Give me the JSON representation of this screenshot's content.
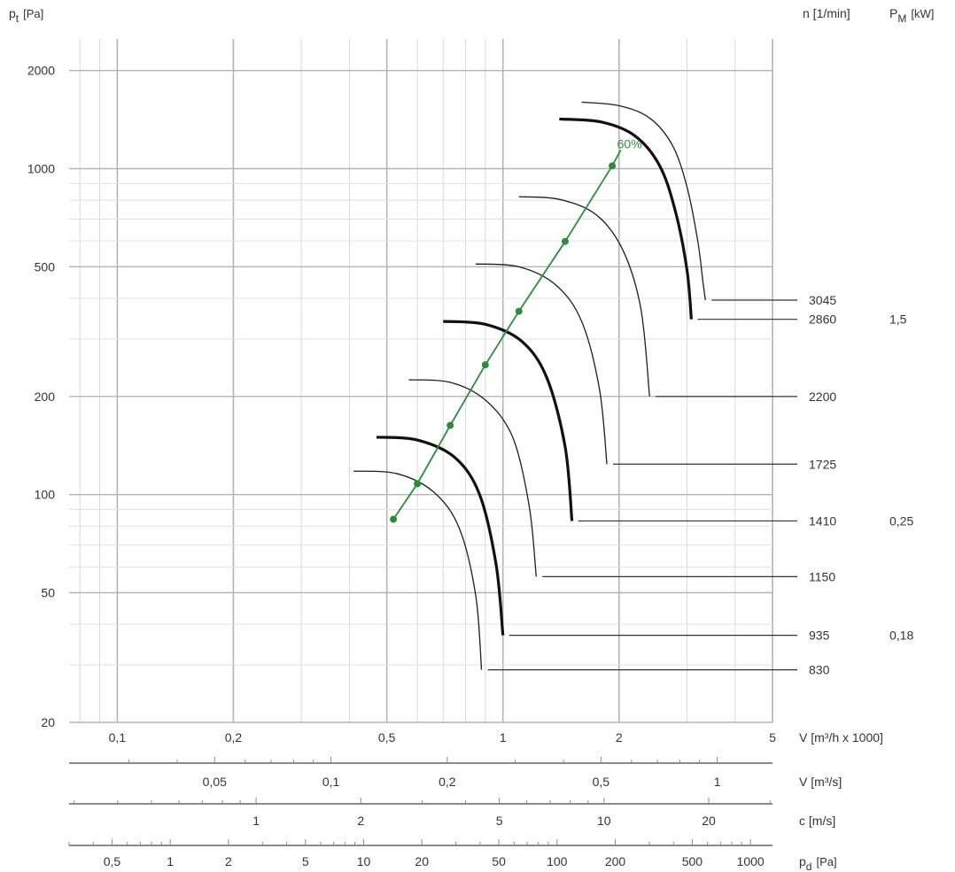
{
  "chart_data": {
    "type": "line",
    "title": "",
    "y_axis": {
      "label_main": "p",
      "label_sub": "t",
      "label_unit": "[Pa]",
      "scale": "log",
      "range": [
        20,
        2500
      ],
      "ticks": [
        "20",
        "50",
        "100",
        "200",
        "500",
        "1000",
        "2000"
      ],
      "tick_values": [
        20,
        50,
        100,
        200,
        500,
        1000,
        2000
      ]
    },
    "x_axis": {
      "label": "V [m³/h x 1000]",
      "scale": "log",
      "range": [
        0.075,
        5
      ],
      "ticks": [
        "0,1",
        "0,2",
        "0,5",
        "1",
        "2",
        "5"
      ],
      "tick_values": [
        0.1,
        0.2,
        0.5,
        1,
        2,
        5
      ]
    },
    "secondary_axes": [
      {
        "label": "V [m³/s]",
        "ticks": [
          "0,05",
          "0,1",
          "0,2",
          "0,5",
          "1"
        ],
        "tick_values": [
          0.05,
          0.1,
          0.2,
          0.5,
          1
        ]
      },
      {
        "label": "c [m/s]",
        "ticks": [
          "1",
          "2",
          "5",
          "10",
          "20"
        ],
        "tick_values": [
          1,
          2,
          5,
          10,
          20
        ]
      },
      {
        "label_main": "p",
        "label_sub": "d",
        "label_unit": "[Pa]",
        "ticks": [
          "0,5",
          "1",
          "2",
          "5",
          "10",
          "20",
          "50",
          "100",
          "200",
          "500",
          "1000"
        ],
        "tick_values": [
          0.5,
          1,
          2,
          5,
          10,
          20,
          50,
          100,
          200,
          500,
          1000
        ]
      }
    ],
    "right_headers": {
      "speed_header": "n [1/min]",
      "power_header_main": "P",
      "power_header_sub": "M",
      "power_header_unit": "[kW]"
    },
    "efficiency_line": {
      "label": "60%",
      "points": [
        {
          "x": 0.52,
          "y": 84
        },
        {
          "x": 0.6,
          "y": 108
        },
        {
          "x": 0.73,
          "y": 163
        },
        {
          "x": 0.9,
          "y": 250
        },
        {
          "x": 1.1,
          "y": 365
        },
        {
          "x": 1.45,
          "y": 598
        },
        {
          "x": 1.92,
          "y": 1020
        },
        {
          "x": 2.02,
          "y": 1140
        }
      ]
    },
    "series": [
      {
        "speed": "3045",
        "power": "",
        "bold": false,
        "points": [
          [
            1.6,
            1600
          ],
          [
            2.0,
            1560
          ],
          [
            2.4,
            1430
          ],
          [
            2.75,
            1180
          ],
          [
            3.0,
            880
          ],
          [
            3.2,
            600
          ],
          [
            3.3,
            450
          ],
          [
            3.35,
            395
          ]
        ]
      },
      {
        "speed": "2860",
        "power": "1,5",
        "bold": true,
        "points": [
          [
            1.4,
            1420
          ],
          [
            1.8,
            1390
          ],
          [
            2.2,
            1260
          ],
          [
            2.55,
            1020
          ],
          [
            2.8,
            740
          ],
          [
            3.0,
            490
          ],
          [
            3.08,
            345
          ]
        ]
      },
      {
        "speed": "2200",
        "power": "",
        "bold": false,
        "points": [
          [
            1.1,
            820
          ],
          [
            1.4,
            805
          ],
          [
            1.75,
            720
          ],
          [
            2.05,
            560
          ],
          [
            2.28,
            370
          ],
          [
            2.4,
            200
          ]
        ]
      },
      {
        "speed": "1725",
        "power": "",
        "bold": false,
        "points": [
          [
            0.85,
            510
          ],
          [
            1.1,
            500
          ],
          [
            1.37,
            440
          ],
          [
            1.6,
            340
          ],
          [
            1.78,
            210
          ],
          [
            1.86,
            124
          ]
        ]
      },
      {
        "speed": "1410",
        "power": "0,25",
        "bold": true,
        "points": [
          [
            0.7,
            340
          ],
          [
            0.9,
            333
          ],
          [
            1.12,
            295
          ],
          [
            1.3,
            228
          ],
          [
            1.45,
            140
          ],
          [
            1.51,
            83
          ]
        ]
      },
      {
        "speed": "1150",
        "power": "",
        "bold": false,
        "points": [
          [
            0.57,
            225
          ],
          [
            0.73,
            221
          ],
          [
            0.9,
            195
          ],
          [
            1.06,
            150
          ],
          [
            1.17,
            92
          ],
          [
            1.22,
            56
          ]
        ]
      },
      {
        "speed": "935",
        "power": "0,18",
        "bold": true,
        "points": [
          [
            0.47,
            150
          ],
          [
            0.6,
            147
          ],
          [
            0.75,
            130
          ],
          [
            0.87,
            100
          ],
          [
            0.96,
            61
          ],
          [
            1.0,
            37
          ]
        ]
      },
      {
        "speed": "830",
        "power": "",
        "bold": false,
        "points": [
          [
            0.41,
            118
          ],
          [
            0.53,
            116
          ],
          [
            0.66,
            102
          ],
          [
            0.77,
            79
          ],
          [
            0.85,
            49
          ],
          [
            0.88,
            29
          ]
        ]
      }
    ]
  }
}
